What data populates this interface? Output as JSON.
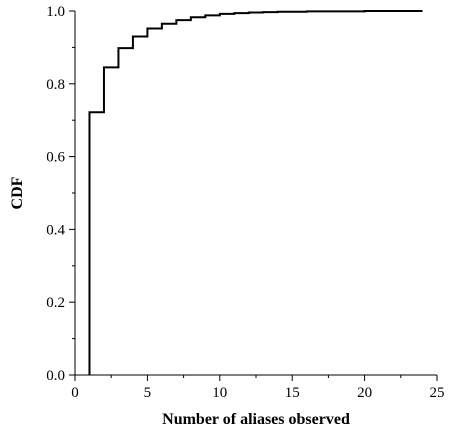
{
  "chart_data": {
    "type": "line",
    "step": true,
    "title": "",
    "xlabel": "Number of aliases observed",
    "ylabel": "CDF",
    "xlim": [
      0,
      25
    ],
    "ylim": [
      0,
      1
    ],
    "x_ticks": [
      0,
      5,
      10,
      15,
      20,
      25
    ],
    "y_ticks": [
      0.0,
      0.2,
      0.4,
      0.6,
      0.8,
      1.0
    ],
    "x_tick_labels": [
      "0",
      "5",
      "10",
      "15",
      "20",
      "25"
    ],
    "y_tick_labels": [
      "0.0",
      "0.2",
      "0.4",
      "0.6",
      "0.8",
      "1.0"
    ],
    "grid": false,
    "series": [
      {
        "x": [
          1,
          2,
          3,
          4,
          5,
          6,
          7,
          8,
          9,
          10,
          11,
          12,
          13,
          14,
          15,
          16,
          17,
          18,
          19,
          20,
          21,
          22,
          23,
          24
        ],
        "y": [
          0.722,
          0.845,
          0.898,
          0.93,
          0.952,
          0.965,
          0.975,
          0.983,
          0.988,
          0.992,
          0.994,
          0.996,
          0.997,
          0.998,
          0.998,
          0.999,
          0.999,
          0.999,
          0.999,
          1.0,
          1.0,
          1.0,
          1.0,
          1.0
        ]
      }
    ]
  }
}
